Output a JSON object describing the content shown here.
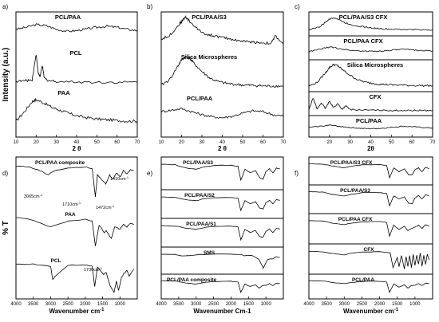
{
  "chart_data": [
    {
      "panel": "a)",
      "type": "line",
      "xlabel": "2 θ",
      "ylabel": "Intensity (a.u.)",
      "xlim": [
        10,
        70
      ],
      "xticks": [
        10,
        20,
        30,
        40,
        50,
        60,
        70
      ],
      "stacked": true,
      "series": [
        {
          "name": "PCL/PAA",
          "x": [
            10,
            15,
            20,
            25,
            30,
            35,
            40,
            45,
            50,
            55,
            60,
            65,
            70
          ],
          "y": [
            0.55,
            0.62,
            0.72,
            0.68,
            0.55,
            0.48,
            0.5,
            0.56,
            0.62,
            0.66,
            0.62,
            0.55,
            0.5
          ]
        },
        {
          "name": "PCL",
          "x": [
            10,
            15,
            18,
            20,
            21,
            22,
            23,
            24,
            26,
            30,
            40,
            50,
            60,
            70
          ],
          "y": [
            0.1,
            0.12,
            0.15,
            0.95,
            0.35,
            0.25,
            0.6,
            0.2,
            0.12,
            0.1,
            0.08,
            0.07,
            0.07,
            0.07
          ]
        },
        {
          "name": "PAA",
          "x": [
            10,
            14,
            18,
            20,
            24,
            28,
            32,
            36,
            40,
            45,
            50,
            55,
            60,
            65,
            70
          ],
          "y": [
            0.2,
            0.45,
            0.75,
            0.8,
            0.7,
            0.58,
            0.5,
            0.42,
            0.35,
            0.3,
            0.26,
            0.24,
            0.22,
            0.2,
            0.2
          ]
        }
      ]
    },
    {
      "panel": "b)",
      "type": "line",
      "xlabel": "2 θ",
      "xlim": [
        10,
        70
      ],
      "xticks": [
        10,
        20,
        30,
        40,
        50,
        60,
        70
      ],
      "stacked": true,
      "series": [
        {
          "name": "PCL/PAA/S3",
          "x": [
            10,
            14,
            18,
            20,
            22,
            24,
            28,
            32,
            36,
            40,
            44,
            48,
            52,
            56,
            60,
            64,
            66,
            70
          ],
          "y": [
            0.3,
            0.4,
            0.7,
            0.85,
            1.0,
            0.85,
            0.6,
            0.45,
            0.4,
            0.35,
            0.3,
            0.25,
            0.22,
            0.2,
            0.18,
            0.16,
            0.4,
            0.15
          ]
        },
        {
          "name": "Silica Microspheres",
          "x": [
            10,
            14,
            18,
            20,
            22,
            24,
            26,
            30,
            34,
            38,
            42,
            46,
            50,
            54,
            58,
            62,
            66,
            70
          ],
          "y": [
            0.15,
            0.3,
            0.7,
            0.9,
            1.0,
            0.95,
            0.8,
            0.55,
            0.35,
            0.25,
            0.2,
            0.17,
            0.15,
            0.14,
            0.13,
            0.12,
            0.12,
            0.12
          ]
        },
        {
          "name": "PCL/PAA",
          "x": [
            10,
            15,
            20,
            25,
            30,
            35,
            40,
            45,
            50,
            55,
            60,
            65,
            70
          ],
          "y": [
            0.55,
            0.6,
            0.65,
            0.55,
            0.45,
            0.38,
            0.35,
            0.4,
            0.5,
            0.58,
            0.55,
            0.45,
            0.4
          ]
        }
      ]
    },
    {
      "panel": "c)",
      "type": "line",
      "xlabel": "2θ",
      "xlim": [
        10,
        70
      ],
      "xticks": [
        20,
        30,
        40,
        50,
        60,
        70
      ],
      "stacked": true,
      "series": [
        {
          "name": "PCL/PAA/S3 CFX",
          "x": [
            10,
            15,
            18,
            20,
            22,
            24,
            28,
            32,
            36,
            40,
            45,
            50,
            55,
            60,
            65,
            70
          ],
          "y": [
            0.2,
            0.35,
            0.65,
            0.85,
            0.95,
            0.85,
            0.6,
            0.45,
            0.38,
            0.3,
            0.25,
            0.22,
            0.2,
            0.2,
            0.18,
            0.18
          ]
        },
        {
          "name": "PCL/PAA CFX",
          "x": [
            10,
            15,
            20,
            25,
            30,
            35,
            40,
            45,
            50,
            55,
            60,
            65,
            70
          ],
          "y": [
            0.3,
            0.45,
            0.6,
            0.5,
            0.4,
            0.35,
            0.33,
            0.35,
            0.4,
            0.45,
            0.43,
            0.38,
            0.35
          ]
        },
        {
          "name": "Silica Microspheres",
          "x": [
            10,
            14,
            18,
            20,
            22,
            24,
            26,
            30,
            34,
            38,
            42,
            46,
            50,
            55,
            60,
            65,
            70
          ],
          "y": [
            0.1,
            0.25,
            0.65,
            0.88,
            1.0,
            0.95,
            0.8,
            0.55,
            0.35,
            0.25,
            0.2,
            0.17,
            0.15,
            0.14,
            0.13,
            0.12,
            0.12
          ]
        },
        {
          "name": "CFX",
          "x": [
            10,
            12,
            14,
            16,
            18,
            20,
            22,
            24,
            26,
            28,
            30,
            35,
            40,
            45,
            50,
            55,
            60,
            65,
            70
          ],
          "y": [
            0.15,
            0.9,
            0.2,
            0.6,
            0.25,
            0.7,
            0.3,
            0.55,
            0.2,
            0.4,
            0.18,
            0.15,
            0.14,
            0.13,
            0.12,
            0.12,
            0.12,
            0.12,
            0.12
          ]
        },
        {
          "name": "PCL/PAA",
          "x": [
            10,
            15,
            20,
            25,
            30,
            35,
            40,
            45,
            50,
            55,
            60,
            65,
            70
          ],
          "y": [
            0.4,
            0.5,
            0.6,
            0.5,
            0.4,
            0.33,
            0.3,
            0.33,
            0.42,
            0.5,
            0.47,
            0.4,
            0.35
          ]
        }
      ]
    },
    {
      "panel": "d)",
      "type": "line",
      "xlabel": "Wavenumber cm",
      "xlabel_superscript": "-1",
      "ylabel": "% T",
      "xlim": [
        4000,
        500
      ],
      "xticks": [
        4000,
        3500,
        3000,
        2500,
        2000,
        1500,
        1000
      ],
      "stacked": true,
      "annotations": [
        "3065cm",
        "1710cm",
        "1472cm",
        "1410cm",
        "1730cm"
      ],
      "annotation_superscript": "-1",
      "series": [
        {
          "name": "PCL/PAA composite",
          "x": [
            4000,
            3600,
            3300,
            3065,
            2900,
            2500,
            2000,
            1800,
            1710,
            1650,
            1472,
            1410,
            1300,
            1200,
            1100,
            1000,
            900,
            800,
            700,
            600
          ],
          "y": [
            0.9,
            0.88,
            0.8,
            0.7,
            0.8,
            0.86,
            0.88,
            0.85,
            0.2,
            0.7,
            0.55,
            0.5,
            0.7,
            0.6,
            0.75,
            0.65,
            0.8,
            0.72,
            0.82,
            0.8
          ]
        },
        {
          "name": "PAA",
          "x": [
            4000,
            3600,
            3300,
            3000,
            2800,
            2500,
            2000,
            1800,
            1710,
            1600,
            1450,
            1400,
            1250,
            1150,
            1000,
            900,
            800,
            700,
            600
          ],
          "y": [
            0.9,
            0.85,
            0.75,
            0.65,
            0.72,
            0.8,
            0.85,
            0.8,
            0.15,
            0.7,
            0.5,
            0.55,
            0.35,
            0.65,
            0.6,
            0.72,
            0.65,
            0.75,
            0.72
          ]
        },
        {
          "name": "PCL",
          "x": [
            4000,
            3500,
            3000,
            2940,
            2860,
            2500,
            2000,
            1800,
            1730,
            1650,
            1470,
            1400,
            1290,
            1240,
            1170,
            1100,
            1040,
            960,
            900,
            800,
            730,
            600
          ],
          "y": [
            0.88,
            0.88,
            0.82,
            0.45,
            0.55,
            0.85,
            0.86,
            0.82,
            0.25,
            0.8,
            0.6,
            0.65,
            0.3,
            0.2,
            0.1,
            0.4,
            0.15,
            0.5,
            0.6,
            0.7,
            0.55,
            0.75
          ]
        }
      ]
    },
    {
      "panel": "e)",
      "type": "line",
      "xlabel": "Wavenumber Cm-1",
      "xlim": [
        4000,
        500
      ],
      "xticks": [
        4000,
        3500,
        3000,
        2500,
        2000,
        1500,
        1000
      ],
      "stacked": true,
      "series": [
        {
          "name": "PCL/PAA/S3",
          "x": [
            4000,
            3600,
            3300,
            3000,
            2800,
            2500,
            2000,
            1800,
            1720,
            1600,
            1450,
            1300,
            1180,
            1080,
            1000,
            900,
            800,
            700,
            600
          ],
          "y": [
            0.9,
            0.88,
            0.75,
            0.7,
            0.78,
            0.85,
            0.86,
            0.82,
            0.25,
            0.7,
            0.55,
            0.65,
            0.35,
            0.3,
            0.6,
            0.72,
            0.55,
            0.75,
            0.72
          ]
        },
        {
          "name": "PCL/PAA/S2",
          "x": [
            4000,
            3600,
            3300,
            3000,
            2800,
            2500,
            2000,
            1800,
            1720,
            1600,
            1450,
            1300,
            1180,
            1080,
            1000,
            900,
            800,
            700,
            600
          ],
          "y": [
            0.88,
            0.86,
            0.75,
            0.7,
            0.78,
            0.84,
            0.86,
            0.82,
            0.22,
            0.7,
            0.55,
            0.65,
            0.35,
            0.3,
            0.6,
            0.72,
            0.55,
            0.75,
            0.72
          ]
        },
        {
          "name": "PCL/PAA/S1",
          "x": [
            4000,
            3600,
            3300,
            3000,
            2800,
            2500,
            2000,
            1800,
            1720,
            1600,
            1450,
            1300,
            1180,
            1080,
            1000,
            900,
            800,
            700,
            600
          ],
          "y": [
            0.88,
            0.86,
            0.76,
            0.7,
            0.78,
            0.84,
            0.86,
            0.82,
            0.2,
            0.7,
            0.55,
            0.65,
            0.35,
            0.32,
            0.6,
            0.72,
            0.55,
            0.75,
            0.72
          ]
        },
        {
          "name": "SMS",
          "x": [
            4000,
            3600,
            3400,
            3200,
            3000,
            2500,
            2000,
            1700,
            1630,
            1400,
            1200,
            1100,
            1080,
            950,
            800,
            700,
            600
          ],
          "y": [
            0.88,
            0.86,
            0.78,
            0.8,
            0.85,
            0.88,
            0.88,
            0.86,
            0.8,
            0.82,
            0.6,
            0.25,
            0.15,
            0.6,
            0.65,
            0.75,
            0.7
          ]
        },
        {
          "name": "PCL/PAA composite",
          "x": [
            4000,
            3600,
            3300,
            3000,
            2800,
            2500,
            2000,
            1800,
            1720,
            1600,
            1450,
            1300,
            1200,
            1100,
            1000,
            900,
            800,
            700,
            600
          ],
          "y": [
            0.9,
            0.88,
            0.76,
            0.7,
            0.78,
            0.85,
            0.86,
            0.82,
            0.2,
            0.7,
            0.55,
            0.65,
            0.45,
            0.6,
            0.62,
            0.72,
            0.6,
            0.75,
            0.72
          ]
        }
      ]
    },
    {
      "panel": "f)",
      "type": "line",
      "xlabel": "Wavenumber cm",
      "xlabel_superscript": "-1",
      "xlim": [
        4000,
        500
      ],
      "xticks": [
        4000,
        3500,
        3000,
        2500,
        2000,
        1500,
        1000
      ],
      "stacked": true,
      "series": [
        {
          "name": "PCL/PAA/S3 CFX",
          "x": [
            4000,
            3600,
            3300,
            3000,
            2800,
            2500,
            2000,
            1800,
            1720,
            1600,
            1450,
            1300,
            1180,
            1080,
            1000,
            900,
            800,
            700,
            600
          ],
          "y": [
            0.9,
            0.88,
            0.78,
            0.7,
            0.78,
            0.85,
            0.86,
            0.82,
            0.2,
            0.7,
            0.5,
            0.65,
            0.35,
            0.35,
            0.6,
            0.7,
            0.5,
            0.72,
            0.65
          ]
        },
        {
          "name": "PCL/PAA/S3",
          "x": [
            4000,
            3600,
            3300,
            3000,
            2800,
            2500,
            2000,
            1800,
            1720,
            1600,
            1450,
            1300,
            1180,
            1080,
            1000,
            900,
            800,
            700,
            600
          ],
          "y": [
            0.9,
            0.88,
            0.76,
            0.7,
            0.78,
            0.85,
            0.86,
            0.82,
            0.22,
            0.7,
            0.55,
            0.65,
            0.35,
            0.32,
            0.6,
            0.72,
            0.55,
            0.75,
            0.72
          ]
        },
        {
          "name": "PCL/PAA CFX",
          "x": [
            4000,
            3600,
            3300,
            3000,
            2800,
            2500,
            2000,
            1800,
            1720,
            1600,
            1450,
            1300,
            1200,
            1100,
            1000,
            900,
            800,
            700,
            600
          ],
          "y": [
            0.9,
            0.88,
            0.78,
            0.72,
            0.78,
            0.85,
            0.86,
            0.82,
            0.2,
            0.7,
            0.5,
            0.65,
            0.45,
            0.55,
            0.6,
            0.7,
            0.55,
            0.72,
            0.65
          ]
        },
        {
          "name": "CFX",
          "x": [
            4000,
            3600,
            3300,
            3000,
            2800,
            2500,
            2000,
            1700,
            1620,
            1500,
            1450,
            1380,
            1300,
            1250,
            1200,
            1150,
            1100,
            1050,
            1000,
            950,
            900,
            850,
            800,
            750,
            700,
            650,
            600
          ],
          "y": [
            0.88,
            0.86,
            0.78,
            0.72,
            0.8,
            0.85,
            0.86,
            0.82,
            0.15,
            0.6,
            0.2,
            0.7,
            0.1,
            0.65,
            0.2,
            0.7,
            0.15,
            0.75,
            0.25,
            0.7,
            0.3,
            0.8,
            0.2,
            0.7,
            0.3,
            0.75,
            0.5
          ]
        },
        {
          "name": "PCL/PAA",
          "x": [
            4000,
            3600,
            3300,
            3000,
            2800,
            2500,
            2000,
            1800,
            1720,
            1600,
            1450,
            1300,
            1200,
            1100,
            1000,
            900,
            800,
            700,
            600
          ],
          "y": [
            0.9,
            0.88,
            0.78,
            0.72,
            0.78,
            0.85,
            0.86,
            0.82,
            0.2,
            0.7,
            0.5,
            0.65,
            0.45,
            0.6,
            0.62,
            0.72,
            0.6,
            0.75,
            0.72
          ]
        }
      ]
    }
  ]
}
